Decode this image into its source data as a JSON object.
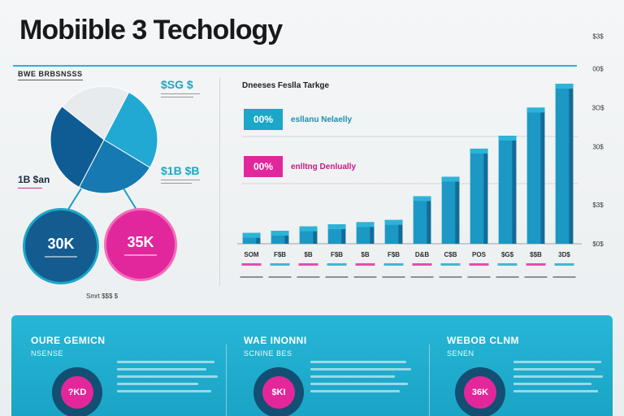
{
  "header": {
    "title": "Mobiible 3 Techology",
    "left_label": "BWE BRBSNSSS"
  },
  "pie": {
    "top_annotation": "$SG $",
    "mid_annotation": "$1B $B",
    "left_annotation": "1B $an",
    "slices": [
      {
        "value": 22,
        "color": "#e8ebee"
      },
      {
        "value": 26,
        "color": "#22a9d3"
      },
      {
        "value": 24,
        "color": "#1679b1"
      },
      {
        "value": 28,
        "color": "#0f5c94"
      }
    ]
  },
  "circles": {
    "left": {
      "value": "30K",
      "color": "#145b8f"
    },
    "right": {
      "value": "35K",
      "color": "#e1279b"
    }
  },
  "left_footer": "Smrt $$$ $",
  "chart_data": {
    "type": "bar",
    "title": "Dneeses Feslla Tarkge",
    "legend": [
      {
        "label": "00%",
        "text": "esllanu Nelaelly",
        "color": "#1aa7c8",
        "text_color": "#1a8fb0"
      },
      {
        "label": "00%",
        "text": "enlltng Denlually",
        "color": "#e1279b",
        "text_color": "#c21a86"
      }
    ],
    "categories": [
      "SOM",
      "F$B",
      "$B",
      "F$B",
      "$B",
      "F$B",
      "D&B",
      "C$B",
      "POS",
      "$G$",
      "$$B",
      "3D$"
    ],
    "values": [
      5,
      6,
      8,
      9,
      10,
      11,
      22,
      31,
      44,
      50,
      63,
      74
    ],
    "yticks": [
      "$0$",
      "$3$",
      "30$",
      "3O$",
      "00$",
      "$3$"
    ],
    "tick_values": [
      0,
      18,
      45,
      63,
      81,
      96
    ],
    "ylim": [
      0,
      100
    ],
    "bar_colors": {
      "top": "#2cb4d8",
      "front": "#1c98c4",
      "side": "#136b98"
    }
  },
  "banner": {
    "panels": [
      {
        "title": "OURE GEMICN",
        "sub": "NSENSE",
        "ring": "?KD"
      },
      {
        "title": "WAE INONNI",
        "sub": "SCNINE BES",
        "ring": "$KI"
      },
      {
        "title": "WEBOB CLNM",
        "sub": "SENEN",
        "ring": "36K"
      }
    ]
  }
}
